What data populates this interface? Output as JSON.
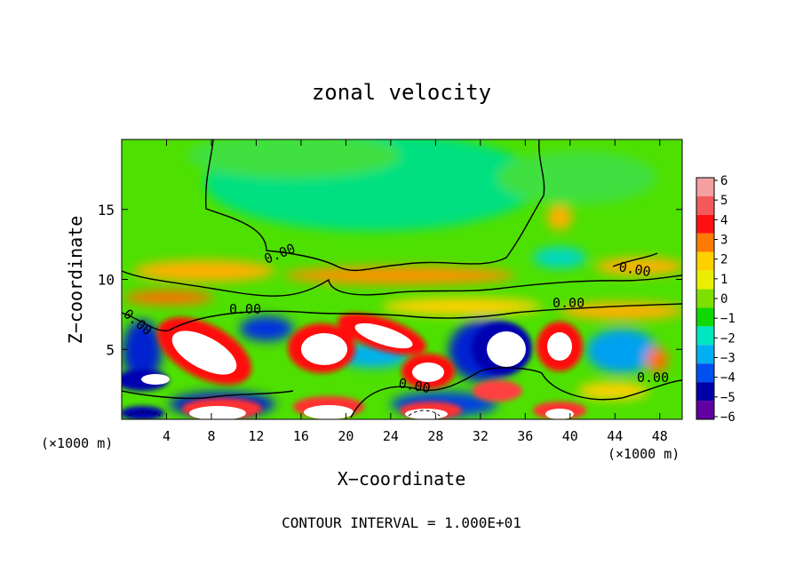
{
  "chart_data": {
    "type": "heatmap",
    "title": "zonal velocity",
    "xlabel": "X−coordinate",
    "ylabel": "Z−coordinate",
    "x_unit_left": "(×1000 m)",
    "x_unit_right": "(×1000 m)",
    "xlim": [
      0,
      50
    ],
    "ylim": [
      0,
      20
    ],
    "x_ticks": [
      4,
      8,
      12,
      16,
      20,
      24,
      28,
      32,
      36,
      40,
      44,
      48
    ],
    "y_ticks": [
      5,
      10,
      15
    ],
    "contour_interval_text": "CONTOUR INTERVAL = 1.000E+01",
    "contour_labels": [
      "0.00",
      "0.00",
      "0.00",
      "0.00",
      "0.00",
      "0.00"
    ],
    "colorbar": {
      "values": [
        6,
        5,
        4,
        3,
        2,
        1,
        0,
        -1,
        -2,
        -3,
        -4,
        -5,
        -6
      ],
      "labels": [
        "6",
        "5",
        "4",
        "3",
        "2",
        "1",
        "0",
        "−1",
        "−2",
        "−3",
        "−4",
        "−5",
        "−6"
      ],
      "colors": [
        "#f4a0a0",
        "#f25a5a",
        "#ff1010",
        "#ff7a00",
        "#ffd000",
        "#e8f000",
        "#7ee000",
        "#10d800",
        "#00e6c0",
        "#00b0f0",
        "#0050f0",
        "#0000a8",
        "#6000a0"
      ]
    }
  }
}
